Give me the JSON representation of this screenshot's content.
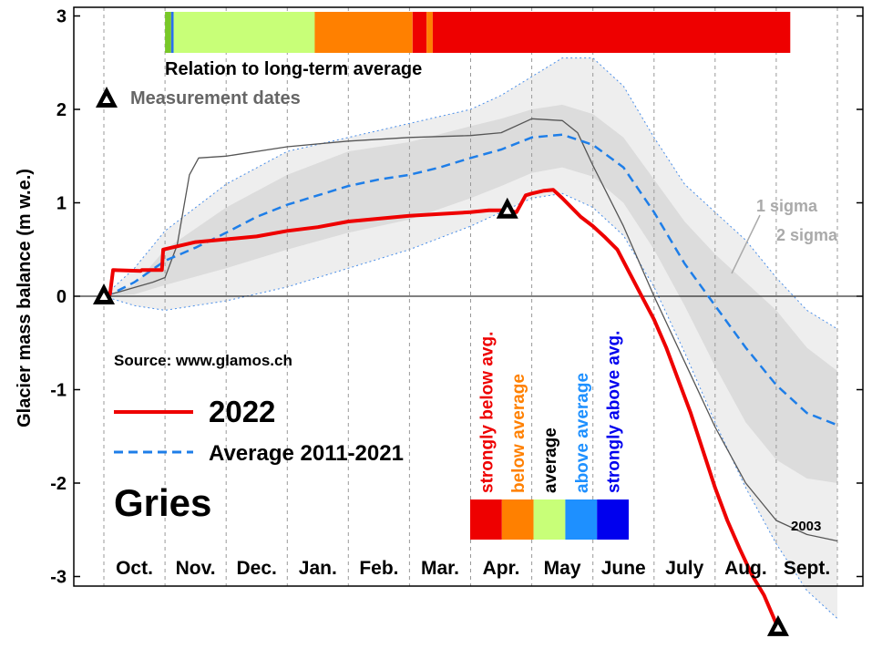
{
  "chart_data": {
    "type": "line",
    "title": "Gries",
    "ylabel": "Glacier mass balance (m w.e.)",
    "xlabel": "",
    "ylim": [
      -3,
      3
    ],
    "yticks": [
      3,
      2,
      1,
      0,
      -1,
      -2,
      -3
    ],
    "x_unit": "months since 1 Oct (hydrological year)",
    "xlim": [
      0,
      12
    ],
    "months": [
      "Oct.",
      "Nov.",
      "Dec.",
      "Jan.",
      "Feb.",
      "Mar.",
      "Apr.",
      "May",
      "June",
      "July",
      "Aug.",
      "Sept."
    ],
    "source": "Source: www.glamos.ch",
    "legend": [
      {
        "label": "2022",
        "color": "#ee0000",
        "style": "solid"
      },
      {
        "label": "Average 2011-2021",
        "color": "#1e7ee8",
        "style": "dashed"
      }
    ],
    "series": [
      {
        "name": "2022",
        "color": "#ee0000",
        "x": [
          0,
          0.1,
          0.15,
          0.6,
          0.62,
          0.95,
          0.97,
          1.5,
          2.5,
          3,
          3.5,
          4,
          4.5,
          5,
          5.5,
          6,
          6.3,
          6.6,
          6.75,
          6.9,
          7,
          7.2,
          7.35,
          7.5,
          7.65,
          7.8,
          8,
          8.2,
          8.4,
          8.6,
          8.8,
          9,
          9.2,
          9.4,
          9.6,
          9.8,
          10,
          10.2,
          10.4,
          10.6,
          10.8,
          11.03
        ],
        "y": [
          0,
          0.02,
          0.28,
          0.27,
          0.28,
          0.28,
          0.5,
          0.58,
          0.64,
          0.7,
          0.74,
          0.8,
          0.83,
          0.86,
          0.88,
          0.9,
          0.92,
          0.92,
          0.9,
          1.08,
          1.1,
          1.13,
          1.14,
          1.05,
          0.95,
          0.85,
          0.75,
          0.63,
          0.5,
          0.25,
          0.0,
          -0.25,
          -0.55,
          -0.9,
          -1.25,
          -1.65,
          -2.05,
          -2.4,
          -2.7,
          -2.98,
          -3.2,
          -3.55
        ]
      },
      {
        "name": "Average 2011-2021",
        "color": "#1e7ee8",
        "x": [
          0,
          0.2,
          0.5,
          1,
          1.5,
          2,
          2.5,
          3,
          3.5,
          4,
          4.5,
          5,
          5.5,
          6,
          6.5,
          7,
          7.5,
          8,
          8.5,
          9,
          9.5,
          10,
          10.5,
          11,
          11.5,
          12
        ],
        "y": [
          0,
          0.05,
          0.15,
          0.38,
          0.52,
          0.68,
          0.85,
          0.98,
          1.08,
          1.18,
          1.25,
          1.3,
          1.38,
          1.48,
          1.57,
          1.7,
          1.73,
          1.62,
          1.38,
          0.9,
          0.35,
          -0.1,
          -0.55,
          -0.95,
          -1.25,
          -1.38
        ]
      },
      {
        "name": "2003",
        "color": "#555555",
        "x": [
          0,
          0.8,
          1,
          1.2,
          1.4,
          1.55,
          2,
          3,
          4,
          5,
          6,
          6.5,
          7,
          7.5,
          7.75,
          8,
          8.5,
          9,
          9.5,
          10,
          10.5,
          11,
          11.5,
          12
        ],
        "y": [
          0,
          0.15,
          0.2,
          0.55,
          1.3,
          1.48,
          1.5,
          1.6,
          1.66,
          1.7,
          1.72,
          1.75,
          1.9,
          1.88,
          1.75,
          1.4,
          0.75,
          0.0,
          -0.7,
          -1.4,
          -2.0,
          -2.4,
          -2.55,
          -2.62
        ]
      }
    ],
    "bands": [
      {
        "name": "2 sigma",
        "color": "#eeeeee",
        "x": [
          0,
          0.5,
          1,
          2,
          3,
          4,
          5,
          6,
          6.5,
          7,
          7.5,
          8,
          8.5,
          9,
          9.5,
          10,
          10.5,
          11,
          11.5,
          12
        ],
        "lower": [
          0,
          -0.1,
          -0.15,
          -0.05,
          0.1,
          0.3,
          0.5,
          0.75,
          0.9,
          1.05,
          1.1,
          0.95,
          0.65,
          0.1,
          -0.6,
          -1.35,
          -2.05,
          -2.65,
          -3.15,
          -3.45
        ],
        "upper": [
          0,
          0.3,
          0.7,
          1.2,
          1.55,
          1.7,
          1.85,
          2.0,
          2.15,
          2.35,
          2.55,
          2.55,
          2.25,
          1.7,
          1.2,
          0.9,
          0.6,
          0.2,
          -0.15,
          -0.35
        ]
      },
      {
        "name": "1 sigma",
        "color": "#dcdcdc",
        "x": [
          0,
          0.5,
          1,
          2,
          3,
          4,
          5,
          6,
          6.5,
          7,
          7.5,
          8,
          8.5,
          9,
          9.5,
          10,
          10.5,
          11,
          11.5,
          12
        ],
        "lower": [
          0,
          0.02,
          0.12,
          0.3,
          0.5,
          0.68,
          0.82,
          1.05,
          1.18,
          1.32,
          1.38,
          1.28,
          1.0,
          0.5,
          -0.1,
          -0.75,
          -1.35,
          -1.75,
          -1.95,
          -2.0
        ],
        "upper": [
          0,
          0.12,
          0.5,
          0.95,
          1.3,
          1.55,
          1.65,
          1.82,
          1.9,
          2.0,
          2.05,
          1.95,
          1.7,
          1.25,
          0.8,
          0.45,
          0.15,
          -0.15,
          -0.55,
          -0.8
        ]
      }
    ],
    "band_labels": [
      "1 sigma",
      "2 sigma"
    ],
    "measurements": {
      "label": "Measurement dates",
      "x": [
        0,
        6.6,
        11.03
      ],
      "y": [
        0,
        0.92,
        -3.55
      ]
    },
    "relation_bar": {
      "label": "Relation to long-term average",
      "segments": [
        {
          "start": 1.0,
          "end": 1.1,
          "color": "#78c828"
        },
        {
          "start": 1.1,
          "end": 1.14,
          "color": "#2a6ef0"
        },
        {
          "start": 1.14,
          "end": 3.45,
          "color": "#c8ff78"
        },
        {
          "start": 3.45,
          "end": 5.05,
          "color": "#ff8000"
        },
        {
          "start": 5.05,
          "end": 5.28,
          "color": "#ee0000"
        },
        {
          "start": 5.28,
          "end": 5.38,
          "color": "#ff8000"
        },
        {
          "start": 5.38,
          "end": 11.23,
          "color": "#ee0000"
        }
      ]
    },
    "categories_legend": [
      {
        "label": "strongly below avg.",
        "color": "#ee0000"
      },
      {
        "label": "below average",
        "color": "#ff8000"
      },
      {
        "label": "average",
        "color": "#c8ff78",
        "text_color": "#000000"
      },
      {
        "label": "above average",
        "color": "#1e90ff"
      },
      {
        "label": "strongly above avg.",
        "color": "#0000ee"
      }
    ],
    "year_2003_label": "2003"
  }
}
